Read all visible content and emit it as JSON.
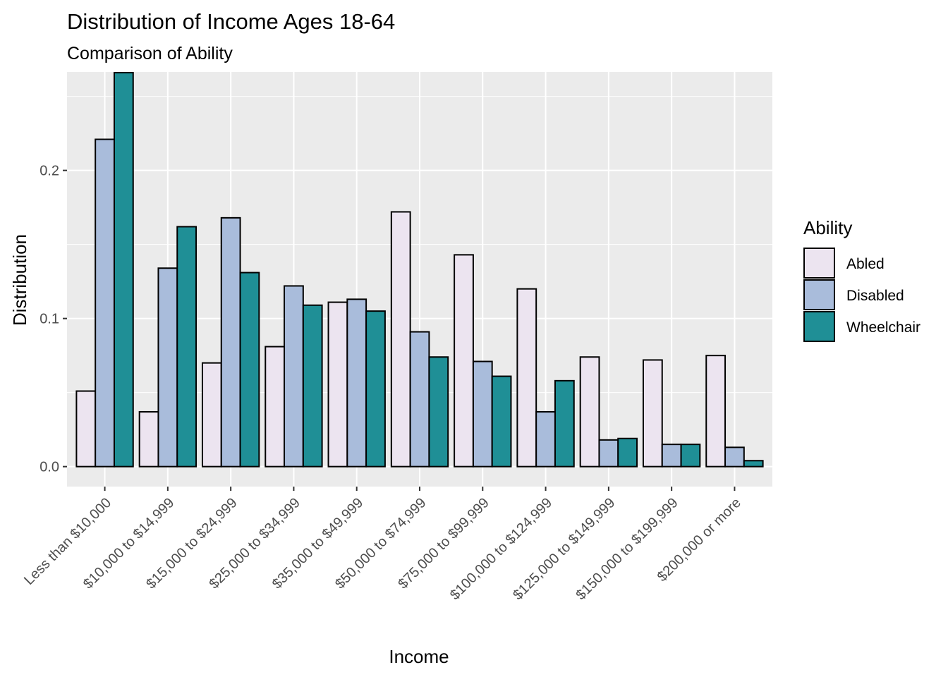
{
  "chart_data": {
    "type": "bar",
    "title": "Distribution of Income Ages 18-64",
    "subtitle": "Comparison of Ability",
    "xlabel": "Income",
    "ylabel": "Distribution",
    "ylim": [
      -0.0135,
      0.2665
    ],
    "yticks": [
      0.0,
      0.1,
      0.2
    ],
    "ytick_labels": [
      "0.0",
      "0.1",
      "0.2"
    ],
    "grid": true,
    "legend_title": "Ability",
    "legend_position": "right",
    "categories": [
      "Less than $10,000",
      "$10,000 to $14,999",
      "$15,000 to $24,999",
      "$25,000 to $34,999",
      "$35,000 to $49,999",
      "$50,000 to $74,999",
      "$75,000 to $99,999",
      "$100,000 to $124,999",
      "$125,000 to $149,999",
      "$150,000 to $199,999",
      "$200,000 or more"
    ],
    "series": [
      {
        "name": "Abled",
        "color": "#ece4f0",
        "values": [
          0.051,
          0.037,
          0.07,
          0.081,
          0.111,
          0.172,
          0.143,
          0.12,
          0.074,
          0.072,
          0.075
        ]
      },
      {
        "name": "Disabled",
        "color": "#a9bcdb",
        "values": [
          0.221,
          0.134,
          0.168,
          0.122,
          0.113,
          0.091,
          0.071,
          0.037,
          0.018,
          0.015,
          0.013
        ]
      },
      {
        "name": "Wheelchair",
        "color": "#1f8f96",
        "values": [
          0.266,
          0.162,
          0.131,
          0.109,
          0.105,
          0.074,
          0.061,
          0.058,
          0.019,
          0.015,
          0.004
        ]
      }
    ]
  }
}
